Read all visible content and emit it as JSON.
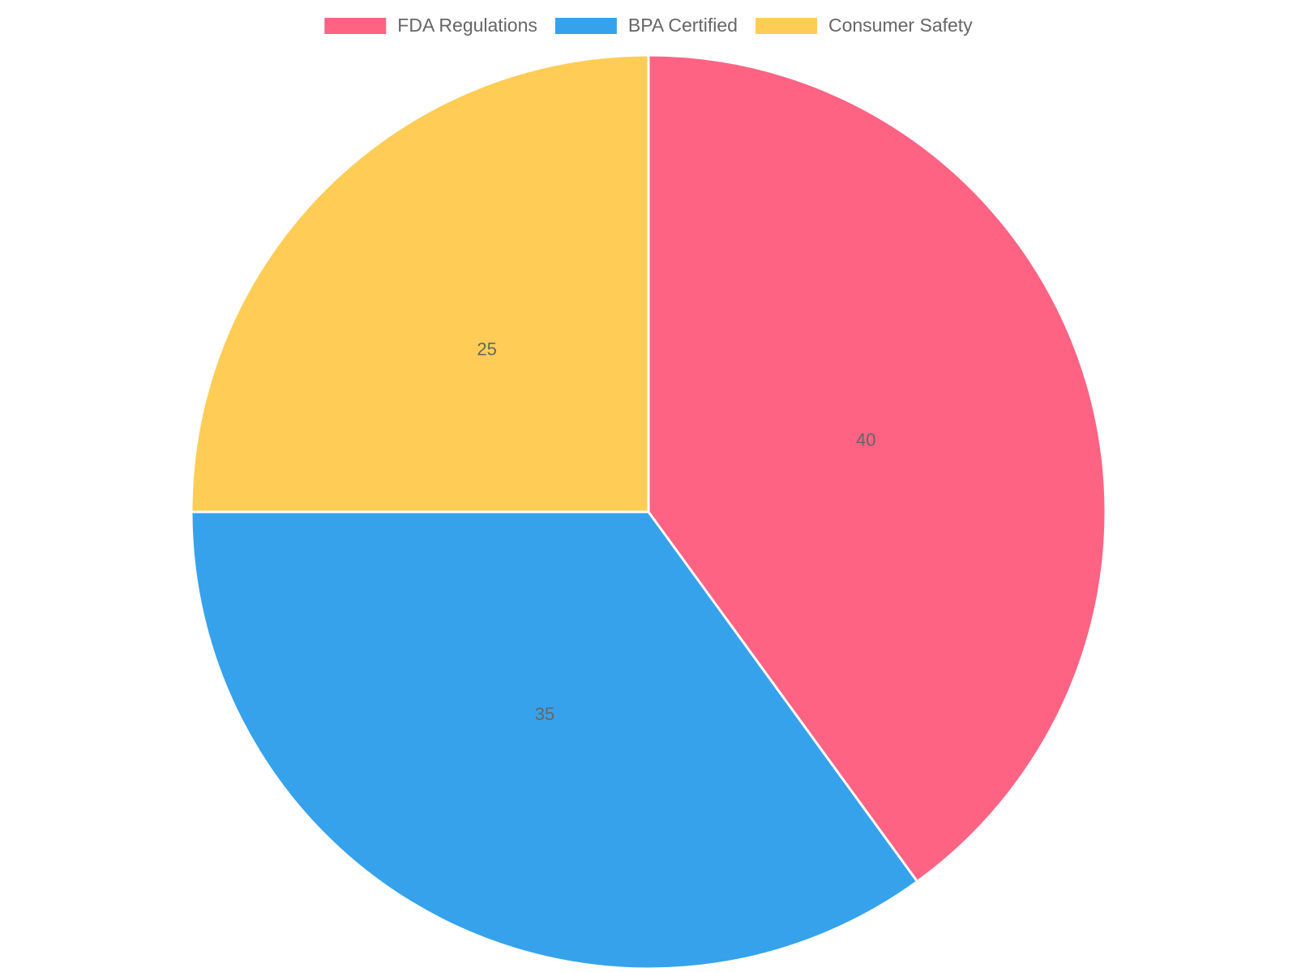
{
  "chart_data": {
    "type": "pie",
    "categories": [
      "FDA Regulations",
      "BPA Certified",
      "Consumer Safety"
    ],
    "values": [
      40,
      35,
      25
    ],
    "colors": [
      "#ff6384",
      "#36a2eb",
      "#ffcd56"
    ],
    "legend": "top"
  }
}
